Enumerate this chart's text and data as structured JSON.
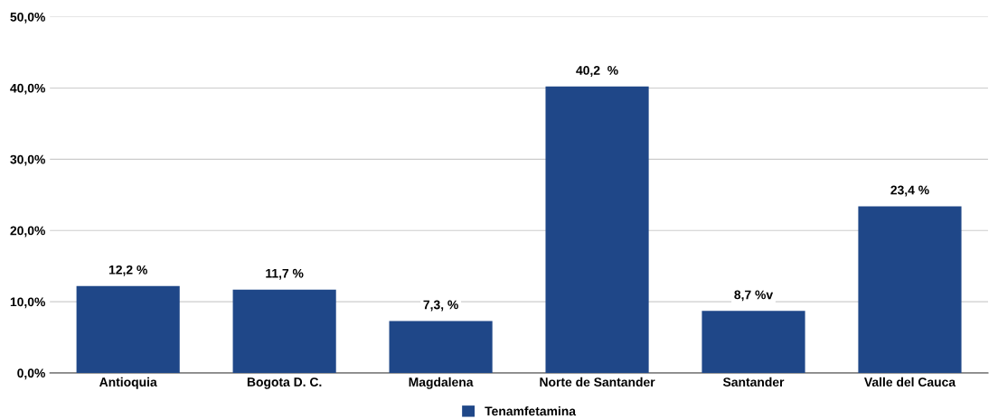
{
  "chart_data": {
    "type": "bar",
    "categories": [
      "Antioquia",
      "Bogota D. C.",
      "Magdalena",
      "Norte de Santander",
      "Santander",
      "Valle del Cauca"
    ],
    "series": [
      {
        "name": "Tenamfetamina",
        "color": "#1f4788",
        "values": [
          12.2,
          11.7,
          7.3,
          40.2,
          8.7,
          23.4
        ],
        "value_labels": [
          "12,2 %",
          "11,7 %",
          "7,3, %",
          "40,2  %",
          "8,7 %v",
          "23,4 %"
        ]
      }
    ],
    "ylim": [
      0,
      50
    ],
    "yticks": [
      {
        "value": 0,
        "label": "0,0%"
      },
      {
        "value": 10,
        "label": "10,0%"
      },
      {
        "value": 20,
        "label": "20,0%"
      },
      {
        "value": 30,
        "label": "30,0%"
      },
      {
        "value": 40,
        "label": "40,0%"
      },
      {
        "value": 50,
        "label": "50,0%"
      }
    ],
    "grid": "y",
    "legend": "bottom"
  }
}
